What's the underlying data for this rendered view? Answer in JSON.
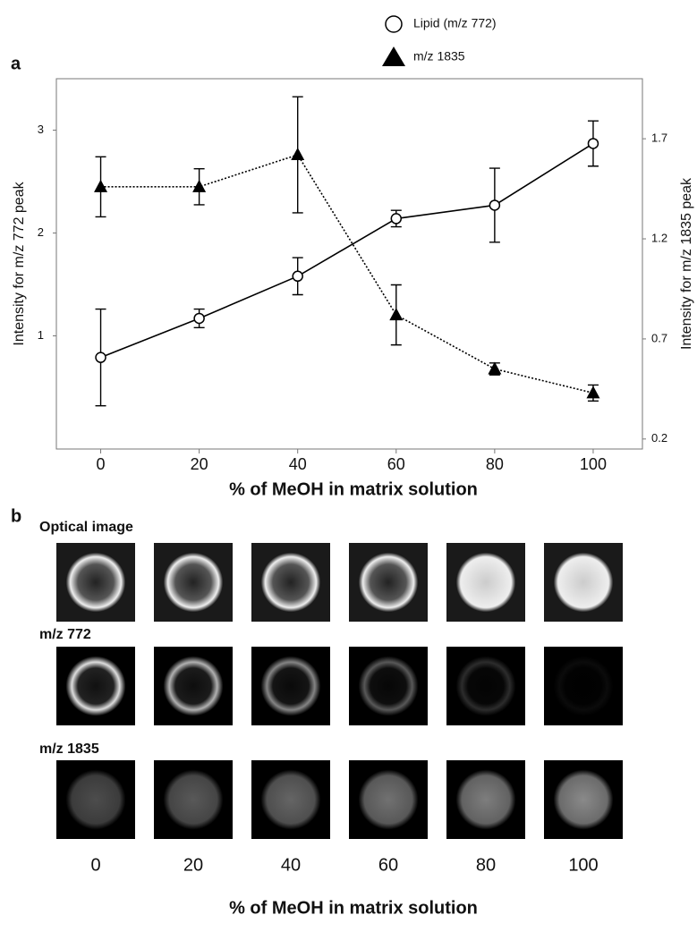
{
  "panel_a_label": "a",
  "chart_data": {
    "type": "line",
    "x_label": "% of MeOH in matrix solution",
    "y_label": "Intensity for m/z 772 peak",
    "y2_label": "Intensity for m/z 1835 peak",
    "x": [
      0,
      20,
      40,
      60,
      80,
      100
    ],
    "xlim": [
      -9,
      110
    ],
    "xticks": [
      0,
      20,
      40,
      60,
      80,
      100
    ],
    "ylim": [
      -0.1,
      3.5
    ],
    "yticks": [
      1,
      2,
      3
    ],
    "y2lim": [
      0.15,
      2.0
    ],
    "y2ticks": [
      1.7,
      1.2,
      0.7,
      0.2
    ],
    "legend": "top-right",
    "series": [
      {
        "name": "Lipid (m/z 772)",
        "color": "#000000",
        "marker": "circle",
        "line_style": "solid",
        "values": [
          0.79,
          1.17,
          1.58,
          2.14,
          2.27,
          2.87
        ],
        "errors": [
          0.47,
          0.09,
          0.18,
          0.08,
          0.36,
          0.22
        ]
      },
      {
        "name": "m/z 1835",
        "color": "#000000",
        "marker": "triangle",
        "line_style": "dotted",
        "axis": "y2",
        "values": [
          1.46,
          1.46,
          1.62,
          0.82,
          0.55,
          0.43
        ],
        "errors": [
          0.15,
          0.09,
          0.29,
          0.15,
          0.03,
          0.04
        ]
      }
    ]
  },
  "panel_b": {
    "label": "b",
    "rows": [
      "Optical image",
      "m/z 772",
      "m/z 1835"
    ],
    "columns": [
      "0",
      "20",
      "40",
      "60",
      "80",
      "100"
    ],
    "x_label": "% of MeOH in matrix solution"
  }
}
